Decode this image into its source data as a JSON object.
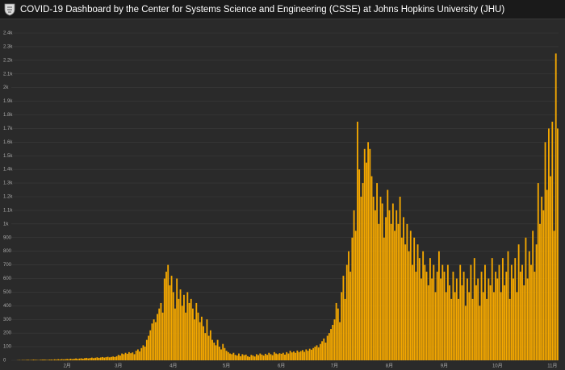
{
  "header": {
    "title": "COVID-19 Dashboard by the Center for Systems Science and Engineering (CSSE) at Johns Hopkins University (JHU)"
  },
  "chart_data": {
    "type": "bar",
    "color": "#f5a800",
    "grid": true,
    "ylim": [
      0,
      2400
    ],
    "yticks": [
      0,
      100,
      200,
      300,
      400,
      500,
      600,
      700,
      800,
      900,
      {
        "value": 1000,
        "label": "1k"
      },
      {
        "value": 1100,
        "label": "1.1k"
      },
      {
        "value": 1200,
        "label": "1.2k"
      },
      {
        "value": 1300,
        "label": "1.3k"
      },
      {
        "value": 1400,
        "label": "1.4k"
      },
      {
        "value": 1500,
        "label": "1.5k"
      },
      {
        "value": 1600,
        "label": "1.6k"
      },
      {
        "value": 1700,
        "label": "1.7k"
      },
      {
        "value": 1800,
        "label": "1.8k"
      },
      {
        "value": 1900,
        "label": "1.9k"
      },
      {
        "value": 2000,
        "label": "2k"
      },
      {
        "value": 2100,
        "label": "2.1k"
      },
      {
        "value": 2200,
        "label": "2.2k"
      },
      {
        "value": 2300,
        "label": "2.3k"
      },
      {
        "value": 2400,
        "label": "2.4k"
      }
    ],
    "categories": [
      null,
      null,
      null,
      null,
      null,
      null,
      null,
      null,
      null,
      null,
      null,
      null,
      null,
      null,
      null,
      null,
      null,
      null,
      null,
      null,
      null,
      null,
      null,
      null,
      null,
      null,
      null,
      null,
      null,
      null,
      null,
      "2月",
      null,
      null,
      null,
      null,
      null,
      null,
      null,
      null,
      null,
      null,
      null,
      null,
      null,
      null,
      null,
      null,
      null,
      null,
      null,
      null,
      null,
      null,
      null,
      null,
      null,
      null,
      null,
      null,
      "3月",
      null,
      null,
      null,
      null,
      null,
      null,
      null,
      null,
      null,
      null,
      null,
      null,
      null,
      null,
      null,
      null,
      null,
      null,
      null,
      null,
      null,
      null,
      null,
      null,
      null,
      null,
      null,
      null,
      null,
      null,
      "4月",
      null,
      null,
      null,
      null,
      null,
      null,
      null,
      null,
      null,
      null,
      null,
      null,
      null,
      null,
      null,
      null,
      null,
      null,
      null,
      null,
      null,
      null,
      null,
      null,
      null,
      null,
      null,
      null,
      null,
      "5月",
      null,
      null,
      null,
      null,
      null,
      null,
      null,
      null,
      null,
      null,
      null,
      null,
      null,
      null,
      null,
      null,
      null,
      null,
      null,
      null,
      null,
      null,
      null,
      null,
      null,
      null,
      null,
      null,
      null,
      null,
      "6月",
      null,
      null,
      null,
      null,
      null,
      null,
      null,
      null,
      null,
      null,
      null,
      null,
      null,
      null,
      null,
      null,
      null,
      null,
      null,
      null,
      null,
      null,
      null,
      null,
      null,
      null,
      null,
      null,
      null,
      "7月",
      null,
      null,
      null,
      null,
      null,
      null,
      null,
      null,
      null,
      null,
      null,
      null,
      null,
      null,
      null,
      null,
      null,
      null,
      null,
      null,
      null,
      null,
      null,
      null,
      null,
      null,
      null,
      null,
      null,
      null,
      "8月",
      null,
      null,
      null,
      null,
      null,
      null,
      null,
      null,
      null,
      null,
      null,
      null,
      null,
      null,
      null,
      null,
      null,
      null,
      null,
      null,
      null,
      null,
      null,
      null,
      null,
      null,
      null,
      null,
      null,
      null,
      "9月",
      null,
      null,
      null,
      null,
      null,
      null,
      null,
      null,
      null,
      null,
      null,
      null,
      null,
      null,
      null,
      null,
      null,
      null,
      null,
      null,
      null,
      null,
      null,
      null,
      null,
      null,
      null,
      null,
      null,
      "10月",
      null,
      null,
      null,
      null,
      null,
      null,
      null,
      null,
      null,
      null,
      null,
      null,
      null,
      null,
      null,
      null,
      null,
      null,
      null,
      null,
      null,
      null,
      null,
      null,
      null,
      null,
      null,
      null,
      null,
      null,
      "11月",
      null,
      null,
      null
    ],
    "values": [
      0,
      0,
      0,
      1,
      2,
      1,
      3,
      2,
      3,
      4,
      2,
      3,
      5,
      4,
      3,
      2,
      4,
      5,
      6,
      4,
      3,
      5,
      6,
      4,
      7,
      5,
      8,
      6,
      9,
      7,
      8,
      10,
      8,
      12,
      9,
      11,
      14,
      10,
      13,
      15,
      12,
      16,
      18,
      14,
      17,
      20,
      16,
      19,
      22,
      18,
      21,
      24,
      20,
      23,
      26,
      22,
      25,
      28,
      24,
      30,
      40,
      35,
      50,
      45,
      55,
      48,
      60,
      52,
      58,
      45,
      70,
      80,
      65,
      90,
      110,
      100,
      150,
      180,
      220,
      270,
      300,
      280,
      340,
      380,
      420,
      350,
      600,
      650,
      700,
      550,
      620,
      500,
      380,
      600,
      450,
      520,
      400,
      480,
      350,
      500,
      420,
      450,
      380,
      300,
      420,
      350,
      280,
      320,
      250,
      200,
      300,
      180,
      220,
      150,
      130,
      110,
      150,
      100,
      80,
      120,
      90,
      70,
      60,
      50,
      45,
      55,
      40,
      35,
      50,
      30,
      45,
      38,
      42,
      30,
      25,
      40,
      35,
      28,
      45,
      38,
      50,
      42,
      35,
      48,
      40,
      55,
      45,
      38,
      60,
      50,
      45,
      52,
      48,
      55,
      42,
      60,
      50,
      70,
      58,
      65,
      55,
      72,
      60,
      68,
      75,
      62,
      80,
      70,
      85,
      78,
      90,
      100,
      110,
      95,
      120,
      140,
      160,
      130,
      180,
      200,
      230,
      260,
      300,
      420,
      380,
      280,
      500,
      620,
      450,
      700,
      800,
      650,
      900,
      1100,
      950,
      1750,
      1400,
      1200,
      1300,
      1550,
      1450,
      1600,
      1550,
      1350,
      1200,
      1100,
      1300,
      1000,
      1200,
      1150,
      900,
      1050,
      1250,
      1100,
      1000,
      1150,
      950,
      1100,
      1000,
      1200,
      900,
      1050,
      850,
      1000,
      800,
      950,
      700,
      900,
      650,
      850,
      750,
      600,
      800,
      700,
      650,
      550,
      750,
      600,
      700,
      500,
      650,
      800,
      600,
      700,
      650,
      500,
      700,
      550,
      450,
      650,
      500,
      600,
      450,
      700,
      550,
      650,
      400,
      600,
      500,
      700,
      450,
      750,
      550,
      600,
      400,
      650,
      500,
      700,
      450,
      600,
      550,
      750,
      500,
      650,
      600,
      700,
      500,
      750,
      550,
      650,
      800,
      450,
      700,
      600,
      750,
      500,
      850,
      650,
      700,
      550,
      900,
      600,
      800,
      700,
      950,
      650,
      850,
      1300,
      1000,
      1200,
      1100,
      1600,
      1250,
      1700,
      1350,
      1750,
      950,
      2250,
      1700
    ]
  }
}
